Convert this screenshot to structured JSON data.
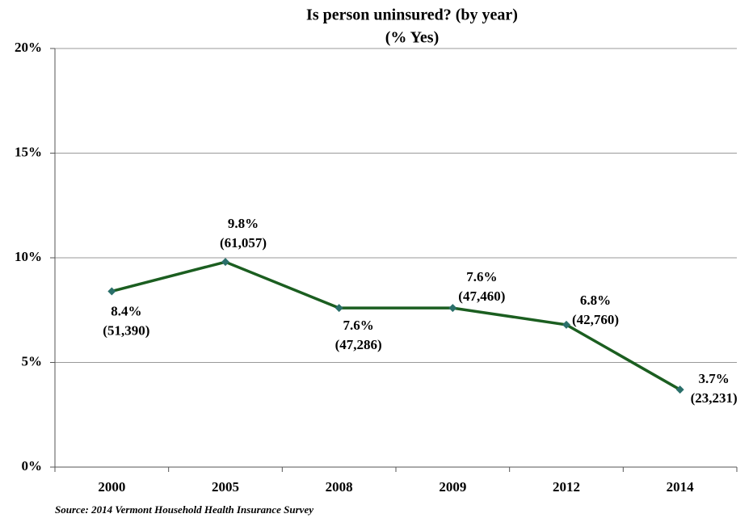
{
  "chart_data": {
    "type": "line",
    "title": "Is person uninsured? (by year)",
    "subtitle": "(% Yes)",
    "source": "Source: 2014 Vermont Household Health Insurance Survey",
    "categories": [
      "2000",
      "2005",
      "2008",
      "2009",
      "2012",
      "2014"
    ],
    "values": [
      8.4,
      9.8,
      7.6,
      7.6,
      6.8,
      3.7
    ],
    "value_labels": [
      "8.4%",
      "9.8%",
      "7.6%",
      "7.6%",
      "6.8%",
      "3.7%"
    ],
    "count_labels": [
      "(51,390)",
      "(61,057)",
      "(47,286)",
      "(47,460)",
      "(42,760)",
      "(23,231)"
    ],
    "color": "#1b5e20",
    "marker_color": "#2a6f6a",
    "ylim": [
      0,
      20
    ],
    "yticks": [
      {
        "value": 0,
        "label": "0%"
      },
      {
        "value": 5,
        "label": "5%"
      },
      {
        "value": 10,
        "label": "10%"
      },
      {
        "value": 15,
        "label": "15%"
      },
      {
        "value": 20,
        "label": "20%"
      }
    ],
    "grid": true
  }
}
